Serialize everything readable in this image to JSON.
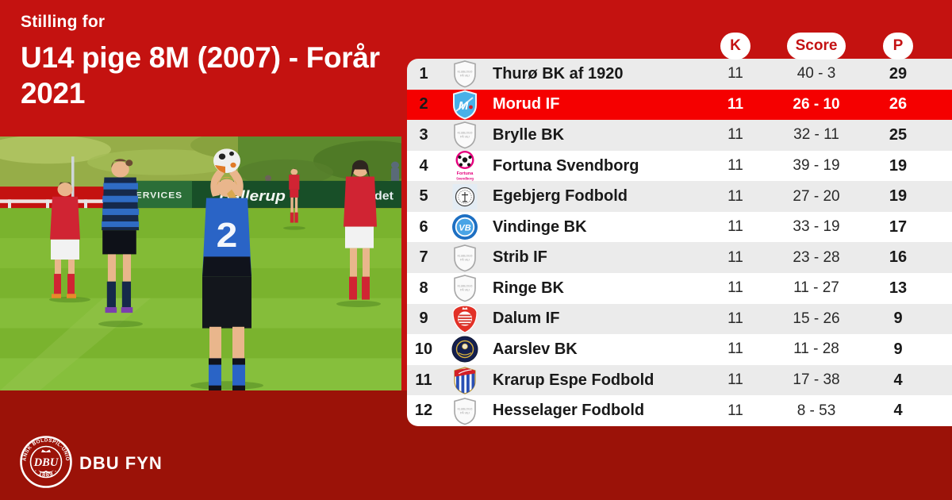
{
  "header": {
    "eyebrow": "Stilling for",
    "title": "U14 pige 8M (2007) - Forår 2021"
  },
  "footer": {
    "brand": "DBU FYN",
    "seal": {
      "ring_text": "DANSK BOLDSPIL-UNION",
      "center": "DBU",
      "year": "· 1889 ·"
    }
  },
  "photo": {
    "jersey_number": "2",
    "ad_board": [
      "SERVICES",
      "Ballerup",
      "det"
    ]
  },
  "graphics": {
    "logo_placeholder_line1": "KLUBLOGO",
    "logo_placeholder_line2": "PÅ VEJ",
    "morud_letter": "M",
    "vindinge_letters": "VB",
    "fortuna_name": "Fortuna",
    "fortuna_city": "Svendborg"
  },
  "colors": {
    "top_red": "#c41210",
    "bottom_maroon": "#9b1208",
    "highlight_red": "#f50000",
    "row_gray": "#ebebeb",
    "row_white": "#ffffff",
    "pill_text_red": "#c41213"
  },
  "table": {
    "headers": [
      {
        "label": "K"
      },
      {
        "label": "Score"
      },
      {
        "label": "P"
      }
    ],
    "rows": [
      {
        "pos": "1",
        "club": "Thurø BK af 1920",
        "logo": "placeholder",
        "k": "11",
        "score": "40 - 3",
        "p": "29",
        "highlight": false
      },
      {
        "pos": "2",
        "club": "Morud IF",
        "logo": "morud",
        "k": "11",
        "score": "26 - 10",
        "p": "26",
        "highlight": true
      },
      {
        "pos": "3",
        "club": "Brylle BK",
        "logo": "placeholder",
        "k": "11",
        "score": "32 - 11",
        "p": "25",
        "highlight": false
      },
      {
        "pos": "4",
        "club": "Fortuna Svendborg",
        "logo": "fortuna",
        "k": "11",
        "score": "39 - 19",
        "p": "19",
        "highlight": false
      },
      {
        "pos": "5",
        "club": "Egebjerg Fodbold",
        "logo": "egebjerg",
        "k": "11",
        "score": "27 - 20",
        "p": "19",
        "highlight": false
      },
      {
        "pos": "6",
        "club": "Vindinge BK",
        "logo": "vindinge",
        "k": "11",
        "score": "33 - 19",
        "p": "17",
        "highlight": false
      },
      {
        "pos": "7",
        "club": "Strib IF",
        "logo": "placeholder",
        "k": "11",
        "score": "23 - 28",
        "p": "16",
        "highlight": false
      },
      {
        "pos": "8",
        "club": "Ringe BK",
        "logo": "placeholder",
        "k": "11",
        "score": "11 - 27",
        "p": "13",
        "highlight": false
      },
      {
        "pos": "9",
        "club": "Dalum IF",
        "logo": "dalum",
        "k": "11",
        "score": "15 - 26",
        "p": "9",
        "highlight": false
      },
      {
        "pos": "10",
        "club": "Aarslev BK",
        "logo": "aarslev",
        "k": "11",
        "score": "11 - 28",
        "p": "9",
        "highlight": false
      },
      {
        "pos": "11",
        "club": "Krarup Espe Fodbold",
        "logo": "krarup",
        "k": "11",
        "score": "17 - 38",
        "p": "4",
        "highlight": false
      },
      {
        "pos": "12",
        "club": "Hesselager Fodbold",
        "logo": "placeholder",
        "k": "11",
        "score": "8 - 53",
        "p": "4",
        "highlight": false
      }
    ]
  },
  "chart_data": {
    "type": "table",
    "title": "Stilling for U14 pige 8M (2007) - Forår 2021",
    "columns": [
      "K",
      "Score",
      "P"
    ],
    "rows": [
      {
        "position": 1,
        "club": "Thurø BK af 1920",
        "K": 11,
        "Score": "40 - 3",
        "P": 29
      },
      {
        "position": 2,
        "club": "Morud IF",
        "K": 11,
        "Score": "26 - 10",
        "P": 26
      },
      {
        "position": 3,
        "club": "Brylle BK",
        "K": 11,
        "Score": "32 - 11",
        "P": 25
      },
      {
        "position": 4,
        "club": "Fortuna Svendborg",
        "K": 11,
        "Score": "39 - 19",
        "P": 19
      },
      {
        "position": 5,
        "club": "Egebjerg Fodbold",
        "K": 11,
        "Score": "27 - 20",
        "P": 19
      },
      {
        "position": 6,
        "club": "Vindinge BK",
        "K": 11,
        "Score": "33 - 19",
        "P": 17
      },
      {
        "position": 7,
        "club": "Strib IF",
        "K": 11,
        "Score": "23 - 28",
        "P": 16
      },
      {
        "position": 8,
        "club": "Ringe BK",
        "K": 11,
        "Score": "11 - 27",
        "P": 13
      },
      {
        "position": 9,
        "club": "Dalum IF",
        "K": 11,
        "Score": "15 - 26",
        "P": 9
      },
      {
        "position": 10,
        "club": "Aarslev BK",
        "K": 11,
        "Score": "11 - 28",
        "P": 9
      },
      {
        "position": 11,
        "club": "Krarup Espe Fodbold",
        "K": 11,
        "Score": "17 - 38",
        "P": 4
      },
      {
        "position": 12,
        "club": "Hesselager Fodbold",
        "K": 11,
        "Score": "8 - 53",
        "P": 4
      }
    ],
    "highlighted_club": "Morud IF",
    "highlight_row": 2
  }
}
